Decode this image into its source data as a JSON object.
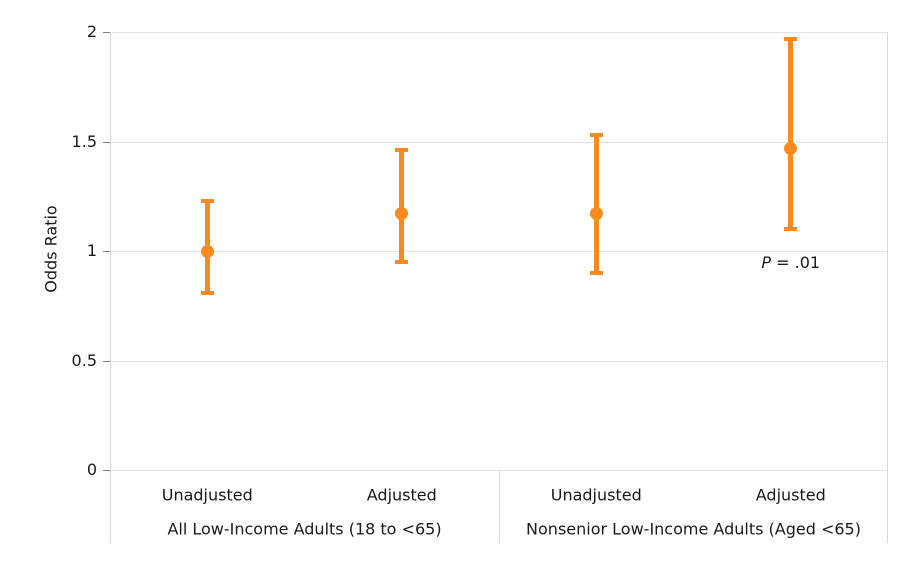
{
  "chart_data": {
    "type": "errorbar",
    "title": "",
    "ylabel": "Odds Ratio",
    "xlabel": "",
    "ylim": [
      0,
      2
    ],
    "yticks": [
      0,
      0.5,
      1,
      1.5,
      2
    ],
    "ytick_labels": [
      "0",
      "0.5",
      "1",
      "1.5",
      "2"
    ],
    "grid": true,
    "legend": null,
    "groups": [
      {
        "label": "All Low-Income Adults (18 to <65)",
        "points": [
          {
            "label": "Unadjusted",
            "odds_ratio": 1.0,
            "ci_low": 0.81,
            "ci_high": 1.23
          },
          {
            "label": "Adjusted",
            "odds_ratio": 1.17,
            "ci_low": 0.95,
            "ci_high": 1.46
          }
        ]
      },
      {
        "label": "Nonsenior Low-Income Adults (Aged <65)",
        "points": [
          {
            "label": "Unadjusted",
            "odds_ratio": 1.17,
            "ci_low": 0.9,
            "ci_high": 1.53
          },
          {
            "label": "Adjusted",
            "odds_ratio": 1.47,
            "ci_low": 1.1,
            "ci_high": 1.97,
            "has_annotation": true
          }
        ]
      }
    ],
    "p_annotation": {
      "italic": "P",
      "text": " = .01"
    },
    "colors": {
      "marker": "#F78B1F",
      "gridline": "#E2E2E2",
      "border": "#D9D9D9",
      "tick_mark": "#7F7F7F",
      "text": "#1A1A1A"
    }
  }
}
